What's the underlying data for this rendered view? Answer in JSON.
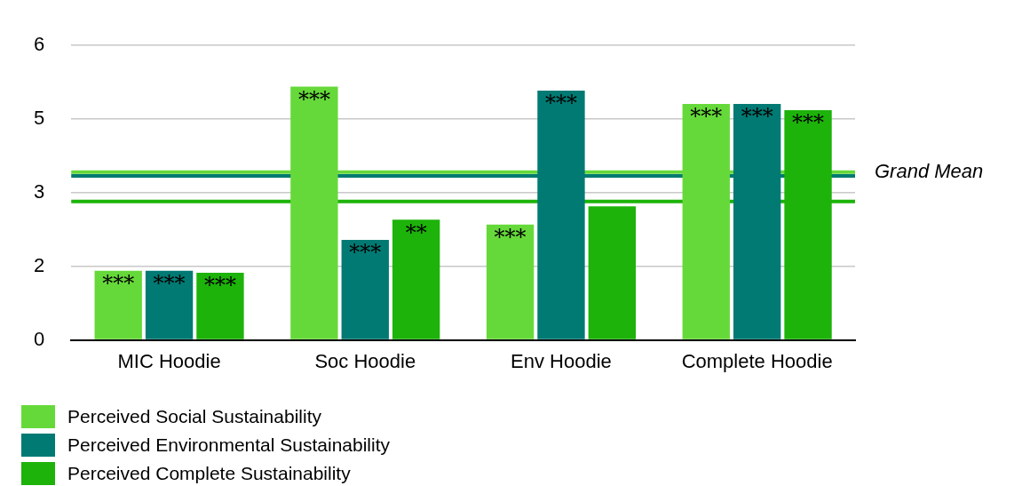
{
  "chart_data": {
    "type": "bar",
    "categories": [
      "MIC Hoodie",
      "Soc Hoodie",
      "Env Hoodie",
      "Complete Hoodie"
    ],
    "series": [
      {
        "name": "Perceived Social Sustainability",
        "color": "#66d93a",
        "values": [
          1.41,
          5.16,
          2.35,
          4.81
        ],
        "value_labels": [
          "***",
          "***",
          "***",
          "***"
        ]
      },
      {
        "name": "Perceived Environmental Sustainability",
        "color": "#007a73",
        "values": [
          1.41,
          2.04,
          5.08,
          4.81
        ],
        "value_labels": [
          "***",
          "***",
          "***",
          "***"
        ]
      },
      {
        "name": "Perceived Complete Sustainability",
        "color": "#1db30a",
        "values": [
          1.37,
          2.45,
          2.72,
          4.68
        ],
        "value_labels": [
          "***",
          "**",
          null,
          "***"
        ]
      }
    ],
    "ylim": [
      0,
      6
    ],
    "yticks": [
      {
        "value": 0,
        "label": "0"
      },
      {
        "value": 1.5,
        "label": "2"
      },
      {
        "value": 3,
        "label": "3"
      },
      {
        "value": 4.5,
        "label": "5"
      },
      {
        "value": 6,
        "label": "6"
      }
    ],
    "ref_lines": [
      {
        "axis": "y",
        "value": 3.42,
        "label": null,
        "color": "#66d93a"
      },
      {
        "axis": "y",
        "value": 3.34,
        "label": "Grand Mean",
        "color": "#007a73"
      },
      {
        "axis": "y",
        "value": 2.82,
        "label": null,
        "color": "#1db30a"
      }
    ],
    "grid": "y",
    "legend": "bottom left"
  }
}
